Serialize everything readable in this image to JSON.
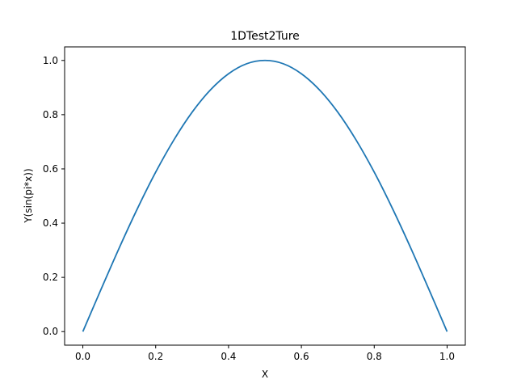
{
  "chart_data": {
    "type": "line",
    "title": "1DTest2Ture",
    "xlabel": "X",
    "ylabel": "Y(sin(pi*x))",
    "xlim": [
      -0.05,
      1.05
    ],
    "ylim": [
      -0.05,
      1.05
    ],
    "xticks": [
      0.0,
      0.2,
      0.4,
      0.6,
      0.8,
      1.0
    ],
    "xtick_labels": [
      "0.0",
      "0.2",
      "0.4",
      "0.6",
      "0.8",
      "1.0"
    ],
    "yticks": [
      0.0,
      0.2,
      0.4,
      0.6,
      0.8,
      1.0
    ],
    "ytick_labels": [
      "0.0",
      "0.2",
      "0.4",
      "0.6",
      "0.8",
      "1.0"
    ],
    "grid": false,
    "series": [
      {
        "color": "#1f77b4",
        "x": [
          0.0,
          0.05,
          0.1,
          0.15,
          0.2,
          0.25,
          0.3,
          0.35,
          0.4,
          0.45,
          0.5,
          0.55,
          0.6,
          0.65,
          0.7,
          0.75,
          0.8,
          0.85,
          0.9,
          0.95,
          1.0
        ],
        "y": [
          0.0,
          0.156,
          0.309,
          0.454,
          0.588,
          0.707,
          0.809,
          0.891,
          0.951,
          0.988,
          1.0,
          0.988,
          0.951,
          0.891,
          0.809,
          0.707,
          0.588,
          0.454,
          0.309,
          0.156,
          0.0
        ]
      }
    ]
  }
}
